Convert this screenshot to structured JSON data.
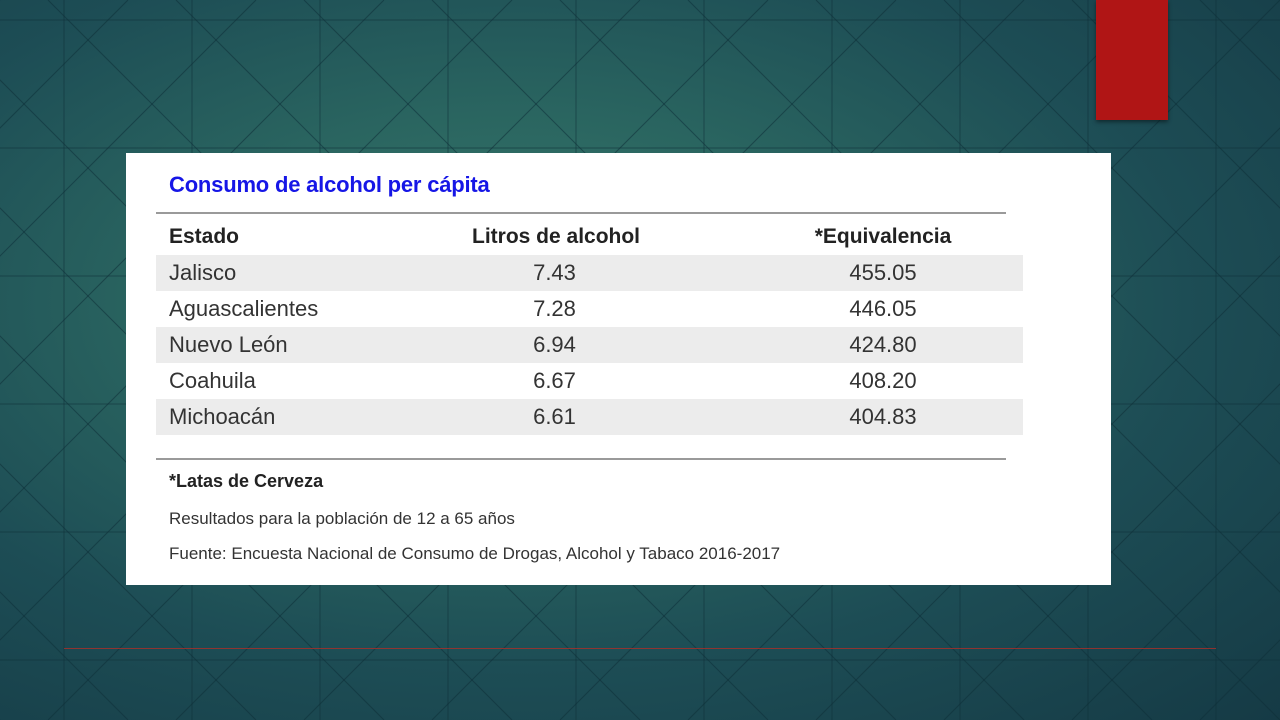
{
  "table": {
    "title": "Consumo de alcohol per cápita",
    "columns": [
      "Estado",
      "Litros de alcohol",
      "*Equivalencia"
    ],
    "rows": [
      [
        "Jalisco",
        "7.43",
        "455.05"
      ],
      [
        "Aguascalientes",
        "7.28",
        "446.05"
      ],
      [
        "Nuevo León",
        "6.94",
        "424.80"
      ],
      [
        "Coahuila",
        "6.67",
        "408.20"
      ],
      [
        "Michoacán",
        "6.61",
        "404.83"
      ]
    ],
    "footnote": "*Latas de Cerveza",
    "population_note": "Resultados para la población de 12 a 65 años",
    "source": "Fuente: Encuesta Nacional de Consumo de Drogas, Alcohol y Tabaco 2016-2017"
  },
  "colors": {
    "title": "#1616e6",
    "accent_red": "#b01515",
    "row_shade": "#ececec"
  }
}
